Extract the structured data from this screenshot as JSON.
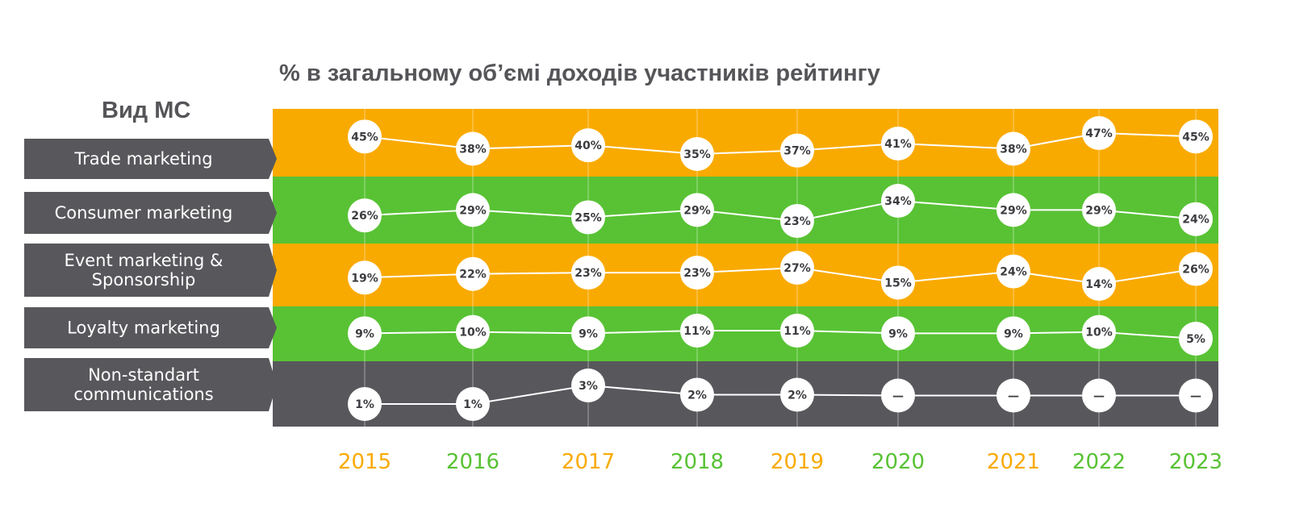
{
  "colors": {
    "orange": "#f9aa00",
    "green": "#58c234",
    "dark": "#58585c",
    "text": "#555559",
    "white": "#ffffff"
  },
  "chart_data": {
    "type": "line",
    "title": "% в загальному об’ємі доходів участників рейтингу",
    "row_header": "Вид МС",
    "x": [
      "2015",
      "2016",
      "2017",
      "2018",
      "2019",
      "2020",
      "2021",
      "2022",
      "2023"
    ],
    "year_colors": [
      "orange",
      "green",
      "orange",
      "green",
      "orange",
      "green",
      "orange",
      "green",
      "green"
    ],
    "series": [
      {
        "name": "Trade marketing",
        "label_lines": [
          "Trade marketing"
        ],
        "band_color": "orange",
        "values": [
          45,
          38,
          40,
          35,
          37,
          41,
          38,
          47,
          45
        ],
        "labels": [
          "45%",
          "38%",
          "40%",
          "35%",
          "37%",
          "41%",
          "38%",
          "47%",
          "45%"
        ]
      },
      {
        "name": "Consumer marketing",
        "label_lines": [
          "Consumer marketing"
        ],
        "band_color": "green",
        "values": [
          26,
          29,
          25,
          29,
          23,
          34,
          29,
          29,
          24
        ],
        "labels": [
          "26%",
          "29%",
          "25%",
          "29%",
          "23%",
          "34%",
          "29%",
          "29%",
          "24%"
        ]
      },
      {
        "name": "Event marketing & Sponsorship",
        "label_lines": [
          "Event marketing &",
          "Sponsorship"
        ],
        "band_color": "orange",
        "values": [
          19,
          22,
          23,
          23,
          27,
          15,
          24,
          14,
          26
        ],
        "labels": [
          "19%",
          "22%",
          "23%",
          "23%",
          "27%",
          "15%",
          "24%",
          "14%",
          "26%"
        ]
      },
      {
        "name": "Loyalty marketing",
        "label_lines": [
          "Loyalty marketing"
        ],
        "band_color": "green",
        "values": [
          9,
          10,
          9,
          11,
          11,
          9,
          9,
          10,
          5
        ],
        "labels": [
          "9%",
          "10%",
          "9%",
          "11%",
          "11%",
          "9%",
          "9%",
          "10%",
          "5%"
        ]
      },
      {
        "name": "Non-standart communications",
        "label_lines": [
          "Non-standart",
          "communications"
        ],
        "band_color": "dark",
        "values": [
          1,
          1,
          3,
          2,
          2,
          null,
          null,
          null,
          null
        ],
        "labels": [
          "1%",
          "1%",
          "3%",
          "2%",
          "2%",
          "—",
          "—",
          "—",
          "—"
        ]
      }
    ]
  }
}
